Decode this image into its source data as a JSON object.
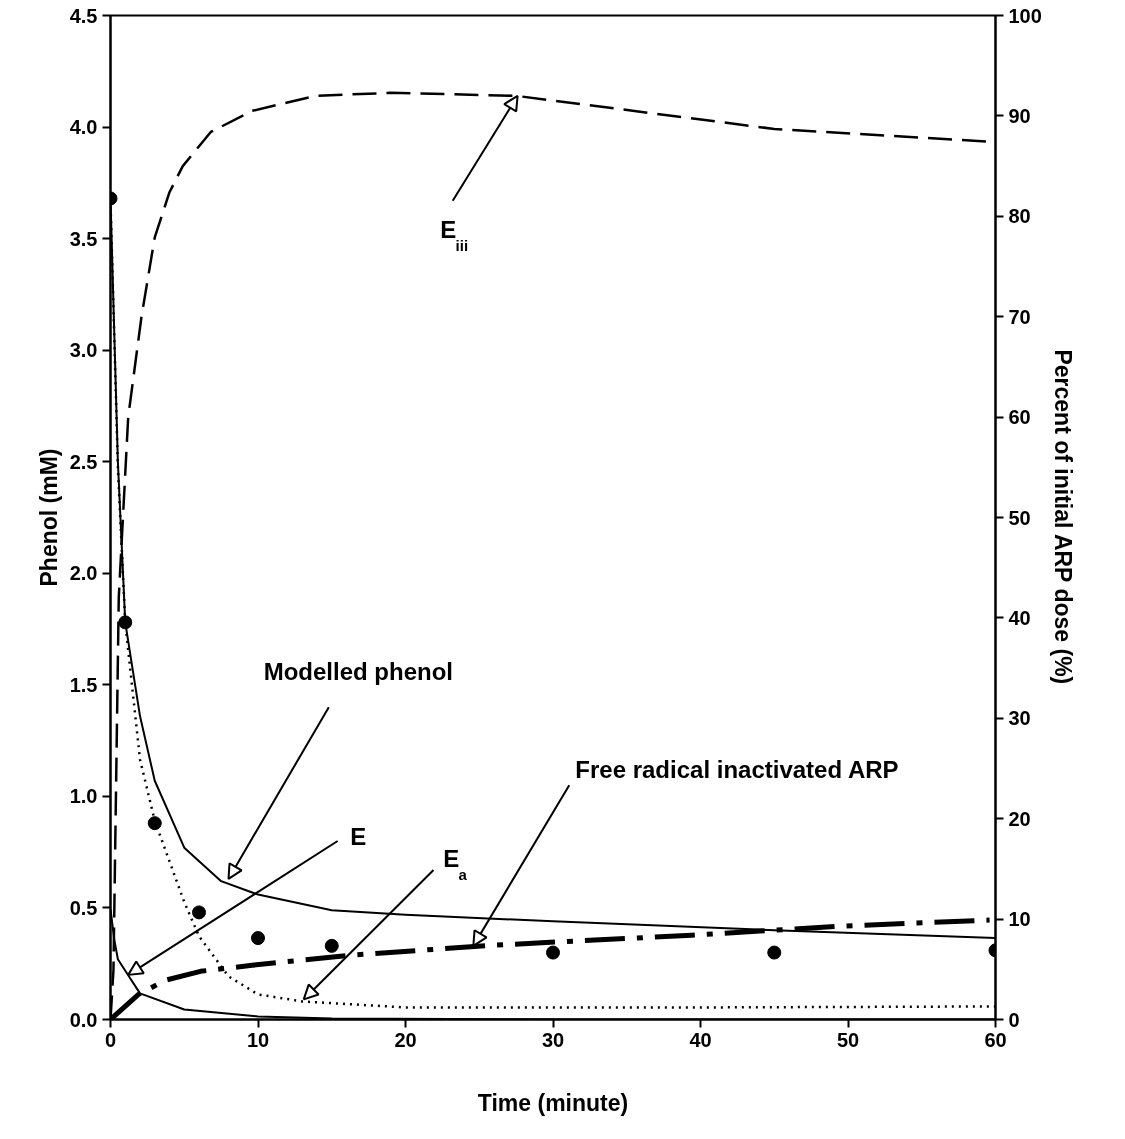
{
  "chart_data": {
    "type": "line",
    "xlabel": "Time (minute)",
    "ylabel": "Phenol (mM)",
    "y2label": "Percent of initial ARP dose (%)",
    "xlim": [
      0,
      60
    ],
    "xticks": [
      0,
      10,
      20,
      30,
      40,
      50,
      60
    ],
    "ylim": [
      0,
      4.5
    ],
    "yticks": [
      {
        "value": 0,
        "label": "0.0"
      },
      0.5,
      {
        "value": 1,
        "label": "1.0"
      },
      1.5,
      {
        "value": 2,
        "label": "2.0"
      },
      2.5,
      {
        "value": 3,
        "label": "3.0"
      },
      3.5,
      {
        "value": 4,
        "label": "4.0"
      },
      4.5
    ],
    "y2lim": [
      0,
      100
    ],
    "y2ticks": [
      0,
      10,
      20,
      30,
      40,
      50,
      60,
      70,
      80,
      90,
      100
    ],
    "grid": false,
    "series": [
      {
        "type": "scatter",
        "marker": "circle",
        "color": "#000000",
        "x": [
          0,
          1,
          3,
          6,
          10,
          15,
          30,
          45,
          60
        ],
        "values": [
          3.68,
          1.78,
          0.88,
          0.48,
          0.365,
          0.33,
          0.3,
          0.3,
          0.31
        ]
      },
      {
        "type": "line",
        "line_style": "solid",
        "color": "#000000",
        "x": [
          0,
          0.5,
          1,
          2,
          3,
          5,
          7.5,
          10,
          15,
          20,
          30,
          45,
          60
        ],
        "values": [
          3.68,
          2.5,
          1.78,
          1.36,
          1.07,
          0.77,
          0.62,
          0.56,
          0.49,
          0.47,
          0.44,
          0.4,
          0.365
        ]
      },
      {
        "type": "line",
        "line_style": "solid",
        "axis": "y2",
        "color": "#000000",
        "x": [
          0,
          0.25,
          0.5,
          1.2,
          2,
          5,
          10,
          15,
          30,
          60
        ],
        "values": [
          11,
          8,
          6,
          4.4,
          2.6,
          1.0,
          0.3,
          0.1,
          0,
          0
        ]
      },
      {
        "type": "line",
        "line_style": "dotted",
        "axis": "y2",
        "color": "#000000",
        "x": [
          0,
          0.5,
          1,
          2,
          3,
          5,
          6,
          8,
          10,
          13,
          20,
          40,
          60
        ],
        "values": [
          81.6,
          55,
          39.5,
          25.9,
          19.8,
          11.7,
          8.3,
          4.3,
          2.5,
          1.8,
          1.2,
          1.2,
          1.3
        ]
      },
      {
        "type": "line",
        "line_style": "dashed",
        "axis": "y2",
        "color": "#000000",
        "x": [
          0,
          0.2,
          0.56,
          1.2,
          2.1,
          3,
          4,
          4.9,
          6.8,
          9.6,
          13.9,
          19,
          27.5,
          45,
          60
        ],
        "values": [
          0,
          4.9,
          42,
          60,
          70,
          77.9,
          82.4,
          85,
          88.4,
          90.5,
          92,
          92.3,
          92,
          88.7,
          87.4
        ]
      },
      {
        "type": "line",
        "line_style": "dashdot",
        "axis": "y2",
        "color": "#000000",
        "x": [
          0,
          1.9,
          3.7,
          6.1,
          9.6,
          16.2,
          26,
          39.4,
          49.5,
          59.6
        ],
        "values": [
          0,
          2.5,
          3.9,
          4.8,
          5.4,
          6.4,
          7.4,
          8.4,
          9.3,
          9.9
        ]
      }
    ],
    "annotations": [
      {
        "text": "E$_{iii}$",
        "x": 27.6,
        "y": 4.14
      },
      {
        "text": "Modelled phenol",
        "x": 8.0,
        "y": 0.63
      },
      {
        "text": "E",
        "x": 1.2,
        "y": 0.2
      },
      {
        "text": "E$_{a}$",
        "x": 13.1,
        "y": 0.09
      },
      {
        "text": "Free radical inactivated ARP",
        "x": 24.6,
        "y": 0.33
      }
    ]
  }
}
